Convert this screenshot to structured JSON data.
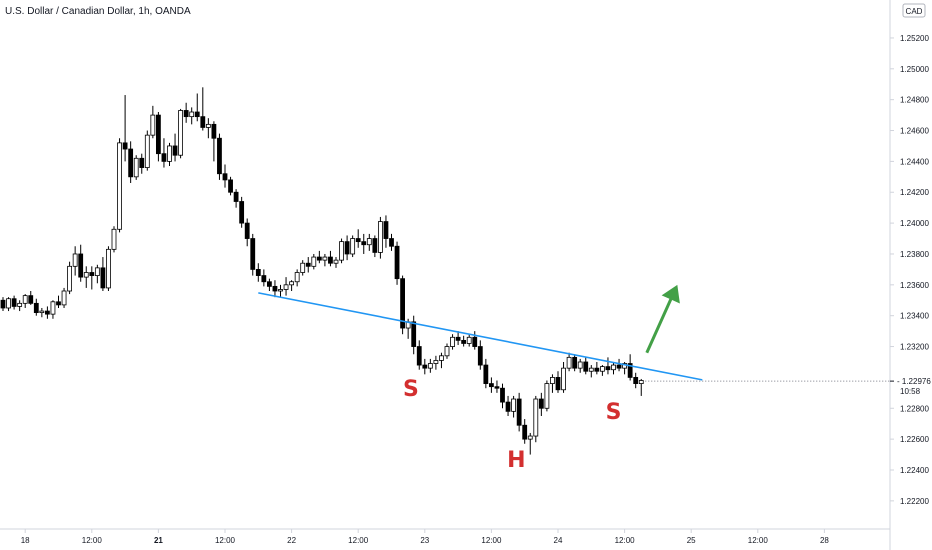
{
  "chart_data": {
    "type": "candlestick",
    "title": "U.S. Dollar / Canadian Dollar, 1h, OANDA",
    "currency_badge": "CAD",
    "ylim": [
      1.2205,
      1.2542
    ],
    "y_ticks": [
      "1.25200",
      "1.25000",
      "1.24800",
      "1.24600",
      "1.24400",
      "1.24200",
      "1.24000",
      "1.23800",
      "1.23600",
      "1.23400",
      "1.23200",
      "1.22800",
      "1.22600",
      "1.22400",
      "1.22200"
    ],
    "x_ticks": [
      {
        "label": "18",
        "bar": 4,
        "day": false
      },
      {
        "label": "12:00",
        "bar": 16,
        "day": false
      },
      {
        "label": "21",
        "bar": 28,
        "day": true
      },
      {
        "label": "12:00",
        "bar": 40,
        "day": false
      },
      {
        "label": "22",
        "bar": 52,
        "day": false
      },
      {
        "label": "12:00",
        "bar": 64,
        "day": false
      },
      {
        "label": "23",
        "bar": 76,
        "day": false
      },
      {
        "label": "12:00",
        "bar": 88,
        "day": false
      },
      {
        "label": "24",
        "bar": 100,
        "day": false
      },
      {
        "label": "12:00",
        "bar": 112,
        "day": false
      },
      {
        "label": "25",
        "bar": 124,
        "day": false
      },
      {
        "label": "12:00",
        "bar": 136,
        "day": false
      },
      {
        "label": "28",
        "bar": 148,
        "day": false
      }
    ],
    "current_price": {
      "value": "1.22976",
      "countdown": "10:58",
      "y": 1.22976
    },
    "candles": [
      [
        1.235,
        1.2352,
        1.2343,
        1.2345
      ],
      [
        1.2345,
        1.2352,
        1.2343,
        1.2351
      ],
      [
        1.2351,
        1.2353,
        1.2344,
        1.2346
      ],
      [
        1.2346,
        1.235,
        1.2343,
        1.2348
      ],
      [
        1.2348,
        1.2354,
        1.2345,
        1.2353
      ],
      [
        1.2353,
        1.2356,
        1.2347,
        1.2348
      ],
      [
        1.2348,
        1.2351,
        1.234,
        1.2342
      ],
      [
        1.2342,
        1.2345,
        1.2339,
        1.2343
      ],
      [
        1.2343,
        1.2346,
        1.2338,
        1.2341
      ],
      [
        1.2341,
        1.235,
        1.2338,
        1.2349
      ],
      [
        1.2349,
        1.2353,
        1.2345,
        1.2347
      ],
      [
        1.2347,
        1.2358,
        1.2345,
        1.2356
      ],
      [
        1.2356,
        1.2375,
        1.2354,
        1.2372
      ],
      [
        1.2372,
        1.2385,
        1.2366,
        1.238
      ],
      [
        1.238,
        1.2386,
        1.2362,
        1.2365
      ],
      [
        1.2365,
        1.2372,
        1.2358,
        1.2368
      ],
      [
        1.2368,
        1.2372,
        1.2357,
        1.2366
      ],
      [
        1.2366,
        1.2373,
        1.2361,
        1.2371
      ],
      [
        1.2371,
        1.2378,
        1.2356,
        1.2358
      ],
      [
        1.2358,
        1.2385,
        1.2356,
        1.2383
      ],
      [
        1.2383,
        1.2398,
        1.2381,
        1.2396
      ],
      [
        1.2396,
        1.2455,
        1.2394,
        1.2452
      ],
      [
        1.2452,
        1.2483,
        1.244,
        1.2448
      ],
      [
        1.2448,
        1.2453,
        1.2426,
        1.243
      ],
      [
        1.243,
        1.2444,
        1.2428,
        1.2442
      ],
      [
        1.2442,
        1.2445,
        1.2432,
        1.2436
      ],
      [
        1.2436,
        1.246,
        1.2434,
        1.2457
      ],
      [
        1.2457,
        1.2476,
        1.2455,
        1.247
      ],
      [
        1.247,
        1.2472,
        1.244,
        1.2445
      ],
      [
        1.2445,
        1.2455,
        1.2436,
        1.244
      ],
      [
        1.244,
        1.2452,
        1.2437,
        1.245
      ],
      [
        1.245,
        1.2458,
        1.244,
        1.2444
      ],
      [
        1.2444,
        1.2474,
        1.2442,
        1.2473
      ],
      [
        1.2473,
        1.2478,
        1.2465,
        1.2469
      ],
      [
        1.2469,
        1.2475,
        1.2464,
        1.2472
      ],
      [
        1.2472,
        1.2484,
        1.2466,
        1.2469
      ],
      [
        1.2469,
        1.2488,
        1.246,
        1.2462
      ],
      [
        1.2462,
        1.2468,
        1.2455,
        1.2464
      ],
      [
        1.2464,
        1.2466,
        1.244,
        1.2455
      ],
      [
        1.2455,
        1.2458,
        1.2428,
        1.2432
      ],
      [
        1.2432,
        1.2438,
        1.2423,
        1.2428
      ],
      [
        1.2428,
        1.243,
        1.2418,
        1.242
      ],
      [
        1.242,
        1.2422,
        1.241,
        1.2414
      ],
      [
        1.2414,
        1.2417,
        1.2397,
        1.24
      ],
      [
        1.24,
        1.2403,
        1.2385,
        1.239
      ],
      [
        1.239,
        1.2393,
        1.2366,
        1.237
      ],
      [
        1.237,
        1.2374,
        1.2362,
        1.2366
      ],
      [
        1.2366,
        1.237,
        1.2359,
        1.2362
      ],
      [
        1.2362,
        1.2364,
        1.2356,
        1.2359
      ],
      [
        1.2359,
        1.2363,
        1.2352,
        1.2356
      ],
      [
        1.2356,
        1.236,
        1.2352,
        1.2357
      ],
      [
        1.2357,
        1.2365,
        1.2353,
        1.236
      ],
      [
        1.236,
        1.2363,
        1.2356,
        1.2362
      ],
      [
        1.2362,
        1.237,
        1.2359,
        1.2368
      ],
      [
        1.2368,
        1.2376,
        1.2366,
        1.2374
      ],
      [
        1.2374,
        1.2378,
        1.2368,
        1.2372
      ],
      [
        1.2372,
        1.238,
        1.237,
        1.2378
      ],
      [
        1.2378,
        1.2382,
        1.2374,
        1.2376
      ],
      [
        1.2376,
        1.238,
        1.2372,
        1.2378
      ],
      [
        1.2378,
        1.2382,
        1.2372,
        1.2374
      ],
      [
        1.2374,
        1.2378,
        1.2371,
        1.2376
      ],
      [
        1.2376,
        1.239,
        1.2374,
        1.2388
      ],
      [
        1.2388,
        1.2392,
        1.2376,
        1.238
      ],
      [
        1.238,
        1.2392,
        1.2378,
        1.239
      ],
      [
        1.239,
        1.2396,
        1.2384,
        1.2388
      ],
      [
        1.2388,
        1.2393,
        1.238,
        1.2386
      ],
      [
        1.2386,
        1.2393,
        1.2382,
        1.239
      ],
      [
        1.239,
        1.2392,
        1.2378,
        1.2381
      ],
      [
        1.2381,
        1.2404,
        1.2377,
        1.2401
      ],
      [
        1.2401,
        1.2405,
        1.2384,
        1.239
      ],
      [
        1.239,
        1.2393,
        1.2382,
        1.2385
      ],
      [
        1.2385,
        1.2388,
        1.236,
        1.2364
      ],
      [
        1.2364,
        1.2366,
        1.2328,
        1.2332
      ],
      [
        1.2332,
        1.2338,
        1.2325,
        1.2336
      ],
      [
        1.2336,
        1.234,
        1.2315,
        1.232
      ],
      [
        1.232,
        1.2324,
        1.2305,
        1.2308
      ],
      [
        1.2308,
        1.2312,
        1.2302,
        1.2306
      ],
      [
        1.2306,
        1.2312,
        1.2303,
        1.2309
      ],
      [
        1.2309,
        1.2314,
        1.2305,
        1.2311
      ],
      [
        1.2311,
        1.2316,
        1.2306,
        1.2314
      ],
      [
        1.2314,
        1.2322,
        1.2312,
        1.232
      ],
      [
        1.232,
        1.2328,
        1.2318,
        1.2326
      ],
      [
        1.2326,
        1.233,
        1.2321,
        1.2324
      ],
      [
        1.2324,
        1.2327,
        1.232,
        1.2322
      ],
      [
        1.2322,
        1.2328,
        1.232,
        1.2326
      ],
      [
        1.2326,
        1.233,
        1.2318,
        1.232
      ],
      [
        1.232,
        1.2324,
        1.2305,
        1.2308
      ],
      [
        1.2308,
        1.2312,
        1.2293,
        1.2296
      ],
      [
        1.2296,
        1.23,
        1.229,
        1.2294
      ],
      [
        1.2294,
        1.2298,
        1.229,
        1.2293
      ],
      [
        1.2293,
        1.2296,
        1.228,
        1.2284
      ],
      [
        1.2284,
        1.2288,
        1.2275,
        1.2278
      ],
      [
        1.2278,
        1.2288,
        1.2274,
        1.2286
      ],
      [
        1.2286,
        1.229,
        1.2265,
        1.2269
      ],
      [
        1.2269,
        1.2273,
        1.2257,
        1.226
      ],
      [
        1.226,
        1.2264,
        1.225,
        1.2262
      ],
      [
        1.2262,
        1.2288,
        1.2258,
        1.2286
      ],
      [
        1.2286,
        1.229,
        1.2275,
        1.228
      ],
      [
        1.228,
        1.2298,
        1.2278,
        1.2296
      ],
      [
        1.2296,
        1.2302,
        1.229,
        1.23
      ],
      [
        1.23,
        1.2304,
        1.229,
        1.2292
      ],
      [
        1.2292,
        1.231,
        1.229,
        1.2306
      ],
      [
        1.2306,
        1.2316,
        1.2304,
        1.2313
      ],
      [
        1.2313,
        1.2315,
        1.2304,
        1.2306
      ],
      [
        1.2306,
        1.2312,
        1.2303,
        1.231
      ],
      [
        1.231,
        1.2313,
        1.2302,
        1.2304
      ],
      [
        1.2304,
        1.2308,
        1.23,
        1.2306
      ],
      [
        1.2306,
        1.231,
        1.2302,
        1.2304
      ],
      [
        1.2304,
        1.2308,
        1.2301,
        1.2307
      ],
      [
        1.2307,
        1.2313,
        1.2302,
        1.2305
      ],
      [
        1.2305,
        1.231,
        1.2302,
        1.2308
      ],
      [
        1.2308,
        1.2312,
        1.2304,
        1.2306
      ],
      [
        1.2306,
        1.231,
        1.2302,
        1.2309
      ],
      [
        1.2309,
        1.2315,
        1.2298,
        1.23
      ],
      [
        1.23,
        1.2303,
        1.2293,
        1.2296
      ],
      [
        1.2296,
        1.2299,
        1.2288,
        1.2298
      ]
    ],
    "trendline": {
      "from": [
        46,
        1.23548
      ],
      "to": [
        126,
        1.22984
      ],
      "color": "#2196f3"
    },
    "arrow": {
      "from": [
        116,
        1.2316
      ],
      "to": [
        121.5,
        1.236
      ],
      "color": "#43a047"
    },
    "annotations": [
      {
        "text": "S",
        "bar": 73.5,
        "y": 1.2288,
        "color": "#d32f2f"
      },
      {
        "text": "H",
        "bar": 92.5,
        "y": 1.2242,
        "color": "#d32f2f"
      },
      {
        "text": "S",
        "bar": 110,
        "y": 1.2273,
        "color": "#d32f2f"
      }
    ],
    "colors": {
      "up": "#ffffff",
      "down": "#000000",
      "outline": "#000000",
      "axis_text": "#131722",
      "axis_line": "#d1d4dc",
      "price_tag": "#131722"
    }
  }
}
